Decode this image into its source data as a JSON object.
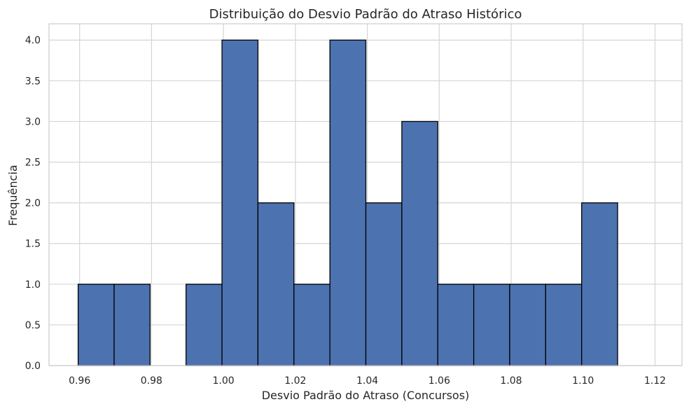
{
  "chart_data": {
    "type": "bar",
    "subtype": "histogram",
    "title": "Distribuição do Desvio Padrão do Atraso Histórico",
    "xlabel": "Desvio Padrão do Atraso (Concursos)",
    "ylabel": "Frequência",
    "xlim": [
      0.9515,
      1.1275
    ],
    "ylim": [
      0,
      4.2
    ],
    "xticks": [
      0.96,
      0.98,
      1.0,
      1.02,
      1.04,
      1.06,
      1.08,
      1.1,
      1.12
    ],
    "xtick_labels": [
      "0.96",
      "0.98",
      "1.00",
      "1.02",
      "1.04",
      "1.06",
      "1.08",
      "1.10",
      "1.12"
    ],
    "yticks": [
      0,
      0.5,
      1,
      1.5,
      2,
      2.5,
      3,
      3.5,
      4
    ],
    "ytick_labels": [
      "0.0",
      "0.5",
      "1.0",
      "1.5",
      "2.0",
      "2.5",
      "3.0",
      "3.5",
      "4.0"
    ],
    "bin_start": 0.9596,
    "bin_width": 0.01,
    "counts": [
      1,
      1,
      0,
      1,
      4,
      2,
      1,
      4,
      2,
      3,
      1,
      1,
      1,
      1,
      2
    ],
    "grid": true,
    "colors": {
      "bar_fill": "#4c72b0",
      "bar_edge": "#000000",
      "grid": "#d5d5d5",
      "axes_edge": "#cccccc"
    }
  }
}
